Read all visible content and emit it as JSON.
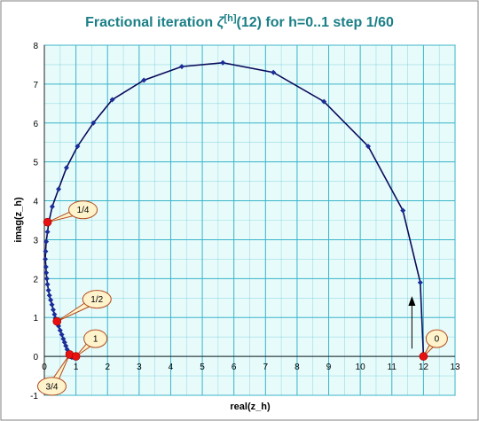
{
  "chart_data": {
    "type": "scatter",
    "title_main": "Fractional iteration ",
    "title_symbol": "ζ",
    "title_superscript": "[h]",
    "title_rest": "(12) for h=0..1 step 1/60",
    "xlabel": "real(z_h)",
    "ylabel": "imag(z_h)",
    "xlim": [
      0,
      13
    ],
    "ylim": [
      -1,
      8
    ],
    "x_ticks": [
      0,
      1,
      2,
      3,
      4,
      5,
      6,
      7,
      8,
      9,
      10,
      11,
      12,
      13
    ],
    "y_ticks": [
      -1,
      0,
      1,
      2,
      3,
      4,
      5,
      6,
      7,
      8
    ],
    "grid": true,
    "colors": {
      "title": "#1a7f86",
      "plot_background": "#e8fbfb",
      "grid": "#3bb5c9",
      "curve": "#0a0a5a",
      "marker": "#1a2d99",
      "highlight": "#e81010",
      "callout_fill": "#fff3cc",
      "callout_stroke": "#b24a1a"
    },
    "series": [
      {
        "values": [
          [
            12.0,
            0.0
          ],
          [
            11.9,
            1.9
          ],
          [
            11.35,
            3.75
          ],
          [
            10.25,
            5.4
          ],
          [
            8.85,
            6.55
          ],
          [
            7.25,
            7.3
          ],
          [
            5.65,
            7.55
          ],
          [
            4.35,
            7.45
          ],
          [
            3.15,
            7.1
          ],
          [
            2.15,
            6.6
          ],
          [
            1.55,
            6.0
          ],
          [
            1.05,
            5.4
          ],
          [
            0.7,
            4.85
          ],
          [
            0.45,
            4.3
          ],
          [
            0.25,
            3.85
          ],
          [
            0.14,
            3.45
          ],
          [
            0.1,
            3.2
          ],
          [
            0.06,
            2.95
          ],
          [
            0.04,
            2.7
          ],
          [
            0.03,
            2.5
          ],
          [
            0.05,
            2.3
          ],
          [
            0.06,
            2.15
          ],
          [
            0.08,
            2.0
          ],
          [
            0.1,
            1.85
          ],
          [
            0.13,
            1.7
          ],
          [
            0.16,
            1.57
          ],
          [
            0.2,
            1.45
          ],
          [
            0.24,
            1.33
          ],
          [
            0.28,
            1.2
          ],
          [
            0.32,
            1.08
          ],
          [
            0.35,
            0.98
          ],
          [
            0.4,
            0.9
          ],
          [
            0.45,
            0.78
          ],
          [
            0.5,
            0.67
          ],
          [
            0.55,
            0.56
          ],
          [
            0.6,
            0.45
          ],
          [
            0.64,
            0.36
          ],
          [
            0.68,
            0.27
          ],
          [
            0.72,
            0.18
          ],
          [
            0.75,
            0.1
          ],
          [
            0.78,
            0.04
          ],
          [
            0.82,
            0.0
          ],
          [
            0.86,
            -0.02
          ],
          [
            0.9,
            -0.02
          ],
          [
            0.94,
            -0.01
          ],
          [
            1.0,
            0.0
          ]
        ]
      }
    ],
    "highlight_points": [
      {
        "label": "0",
        "x": 12.0,
        "y": 0.0
      },
      {
        "label": "1/4",
        "x": 0.1,
        "y": 3.45
      },
      {
        "label": "1/2",
        "x": 0.4,
        "y": 0.9
      },
      {
        "label": "3/4",
        "x": 0.8,
        "y": 0.05
      },
      {
        "label": "1",
        "x": 1.0,
        "y": 0.0
      }
    ]
  }
}
